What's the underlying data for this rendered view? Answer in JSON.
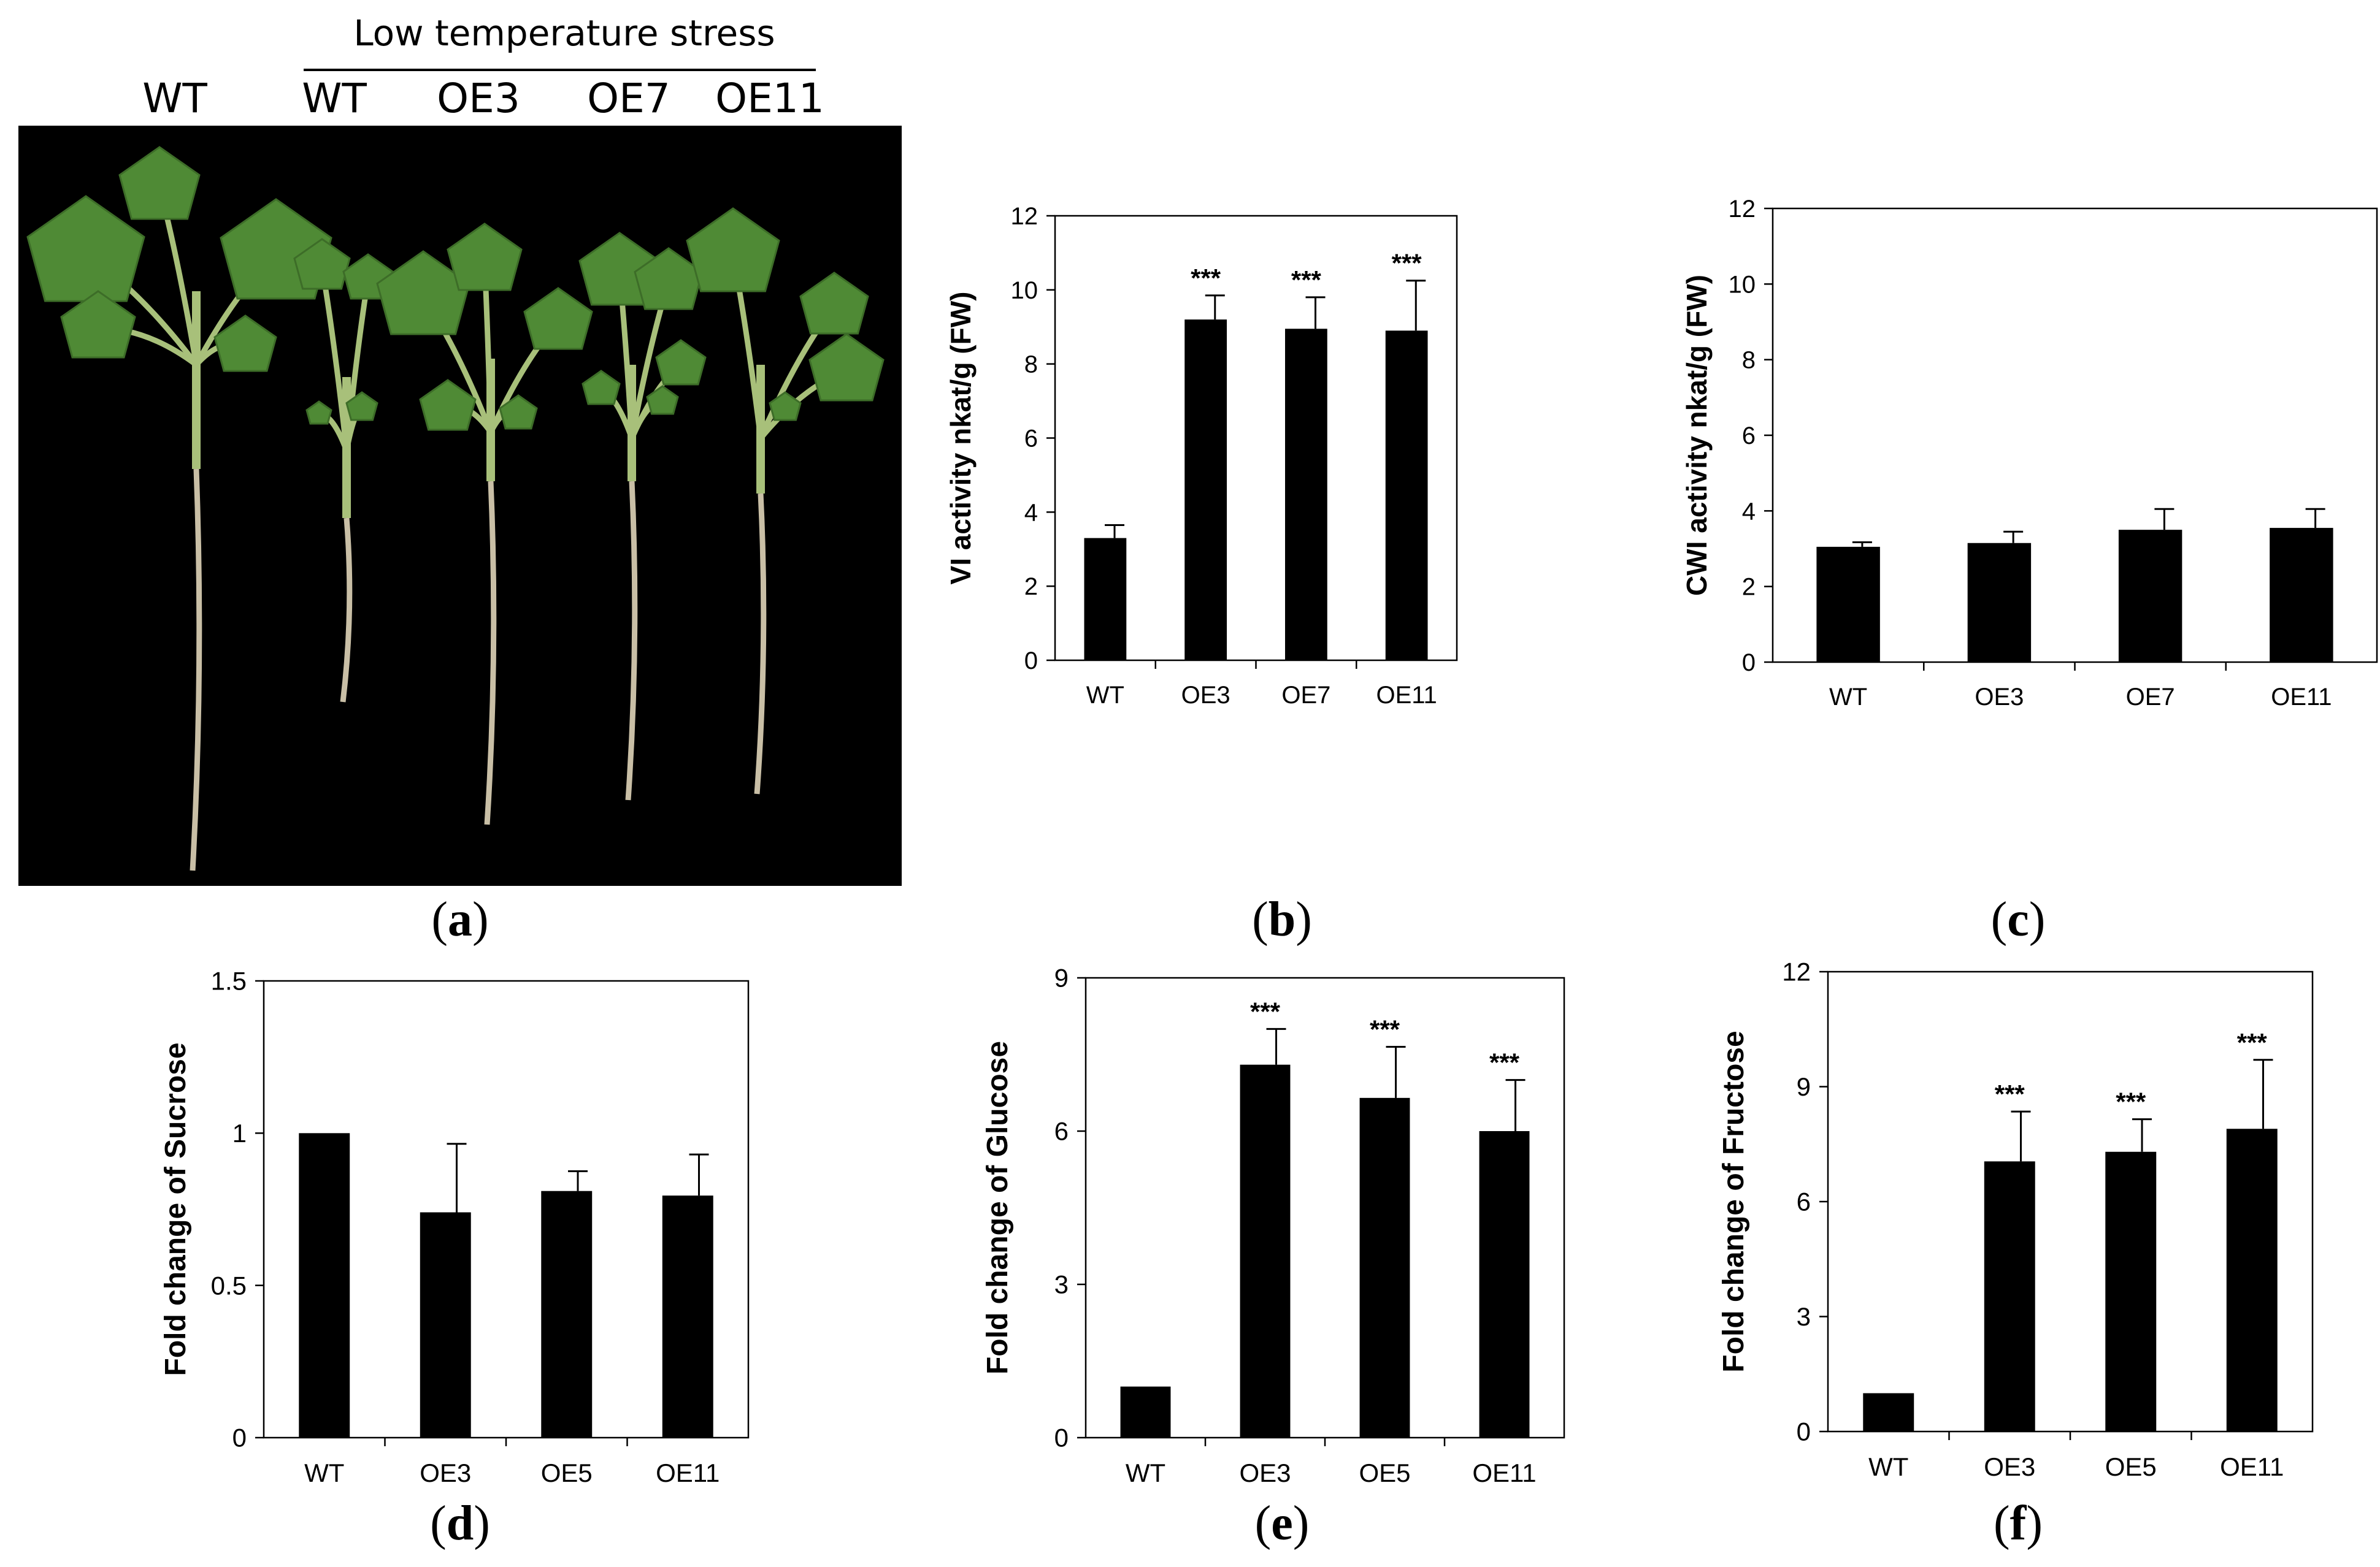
{
  "photo_panel": {
    "control_label": "WT",
    "treatment_title": "Low temperature stress",
    "treatment_labels": [
      "WT",
      "OE3",
      "OE7",
      "OE11"
    ],
    "background_color": "#000000",
    "leaf_color": "#4f8a35",
    "stem_color": "#a8c07a",
    "root_color": "#c9bfa6"
  },
  "panel_labels": [
    "a",
    "b",
    "c",
    "d",
    "e",
    "f"
  ],
  "chart_data": [
    {
      "id": "b",
      "type": "bar",
      "categories": [
        "WT",
        "OE3",
        "OE7",
        "OE11"
      ],
      "values": [
        3.3,
        9.2,
        8.95,
        8.9
      ],
      "errors": [
        0.35,
        0.65,
        0.85,
        1.35
      ],
      "significance": [
        "",
        "***",
        "***",
        "***"
      ],
      "ylabel": "VI activity nkat/g (FW)",
      "ylim": [
        0,
        12
      ],
      "yticks": [
        "0",
        "2",
        "4",
        "6",
        "8",
        "10",
        "12"
      ],
      "bar_color": "#000000",
      "grid": false
    },
    {
      "id": "c",
      "type": "bar",
      "categories": [
        "WT",
        "OE3",
        "OE7",
        "OE11"
      ],
      "values": [
        3.05,
        3.15,
        3.5,
        3.55
      ],
      "errors": [
        0.12,
        0.3,
        0.55,
        0.5
      ],
      "significance": [
        "",
        "",
        "",
        ""
      ],
      "ylabel": "CWI activity nkat/g (FW)",
      "ylim": [
        0,
        12
      ],
      "yticks": [
        "0",
        "2",
        "4",
        "6",
        "8",
        "10",
        "12"
      ],
      "bar_color": "#000000",
      "grid": false
    },
    {
      "id": "d",
      "type": "bar",
      "categories": [
        "WT",
        "OE3",
        "OE5",
        "OE11"
      ],
      "values": [
        1.0,
        0.74,
        0.81,
        0.795
      ],
      "errors": [
        0,
        0.225,
        0.065,
        0.135
      ],
      "significance": [
        "",
        "",
        "",
        ""
      ],
      "ylabel": "Fold change of Sucrose",
      "ylim": [
        0,
        1.5
      ],
      "yticks": [
        "0",
        "0.5",
        "1",
        "1.5"
      ],
      "bar_color": "#000000",
      "grid": false
    },
    {
      "id": "e",
      "type": "bar",
      "categories": [
        "WT",
        "OE3",
        "OE5",
        "OE11"
      ],
      "values": [
        1.0,
        7.3,
        6.65,
        6.0
      ],
      "errors": [
        0,
        0.7,
        1.0,
        1.0
      ],
      "significance": [
        "",
        "***",
        "***",
        "***"
      ],
      "ylabel": "Fold change of Glucose",
      "ylim": [
        0,
        9
      ],
      "yticks": [
        "0",
        "3",
        "6",
        "9"
      ],
      "bar_color": "#000000",
      "grid": false
    },
    {
      "id": "f",
      "type": "bar",
      "categories": [
        "WT",
        "OE3",
        "OE5",
        "OE11"
      ],
      "values": [
        1.0,
        7.05,
        7.3,
        7.9
      ],
      "errors": [
        0,
        1.3,
        0.85,
        1.8
      ],
      "significance": [
        "",
        "***",
        "***",
        "***"
      ],
      "ylabel": "Fold change of Fructose",
      "ylim": [
        0,
        12
      ],
      "yticks": [
        "0",
        "3",
        "6",
        "9",
        "12"
      ],
      "bar_color": "#000000",
      "grid": false
    }
  ]
}
